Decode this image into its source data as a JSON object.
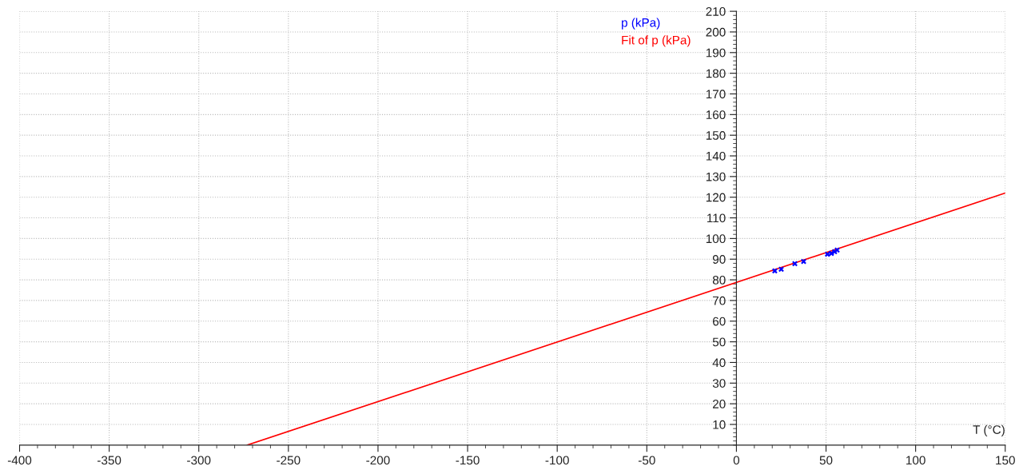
{
  "chart_data": {
    "type": "scatter",
    "xlabel": "T (°C)",
    "series": [
      {
        "name": "p (kPa)",
        "color": "#0000ff",
        "marker": "cross",
        "x": [
          21.4,
          25,
          32.6,
          37.5,
          50.8,
          53,
          54.8,
          56.2
        ],
        "values": [
          84.3,
          85.1,
          87.8,
          88.9,
          92.4,
          92.8,
          93.6,
          94.4
        ]
      },
      {
        "name": "Fit of p (kPa)",
        "type": "line",
        "color": "#ff0000",
        "marker": "none",
        "x": [
          -273,
          150
        ],
        "values": [
          0,
          122
        ]
      }
    ],
    "xlim": [
      -400,
      150
    ],
    "xticks": [
      -400,
      -350,
      -300,
      -250,
      -200,
      -150,
      -100,
      -50,
      0,
      50,
      100,
      150
    ],
    "ylim": [
      0,
      210
    ],
    "yticks": [
      10,
      20,
      30,
      40,
      50,
      60,
      70,
      80,
      90,
      100,
      110,
      120,
      130,
      140,
      150,
      160,
      170,
      180,
      190,
      200,
      210
    ],
    "grid": true,
    "legend": "top right"
  }
}
